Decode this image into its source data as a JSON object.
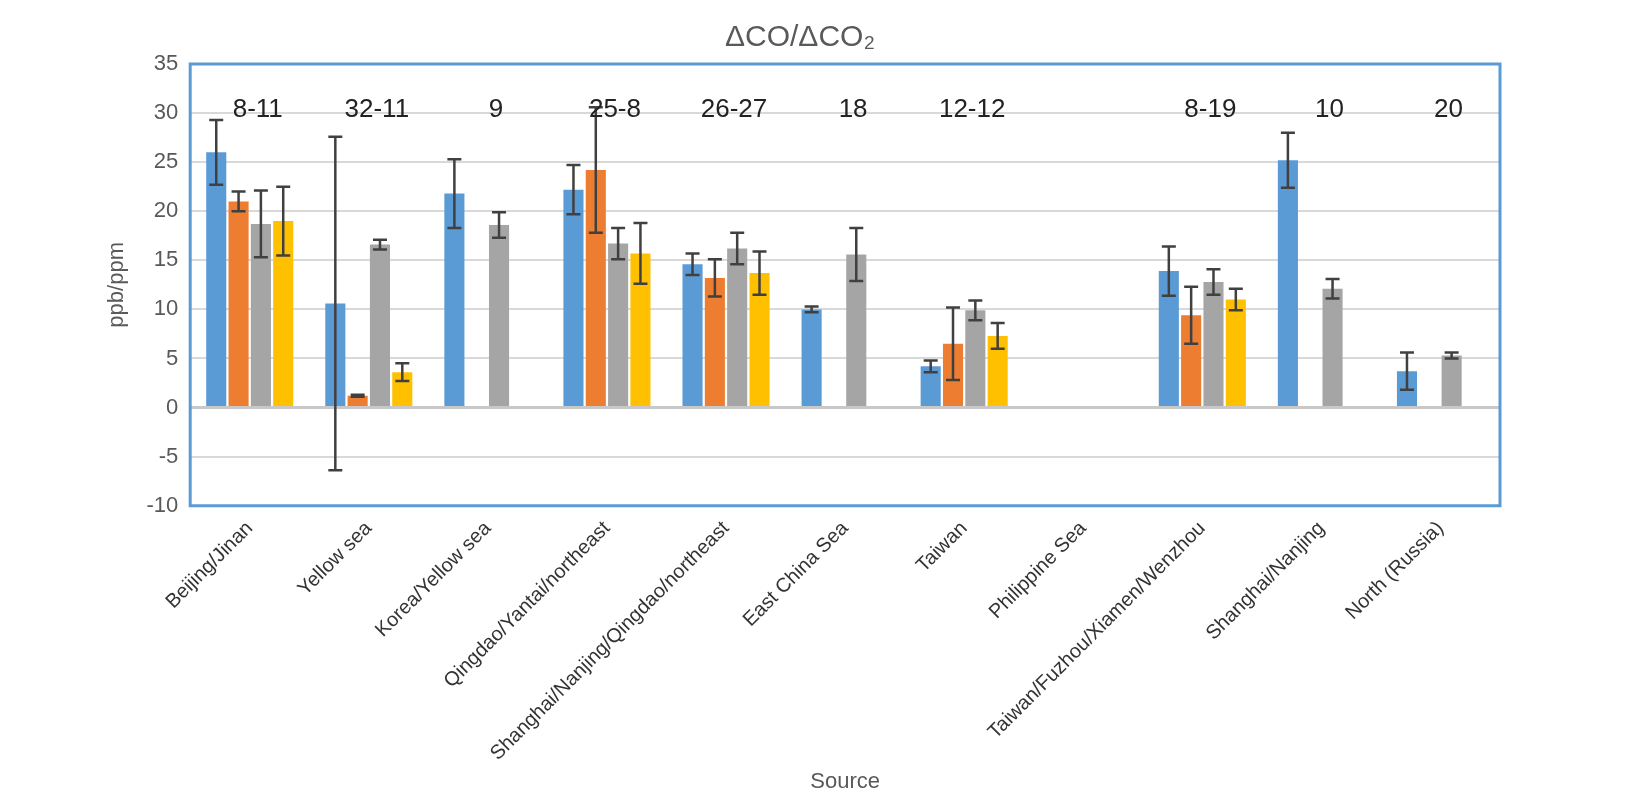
{
  "chart_data": {
    "type": "bar",
    "title": "ΔCO/ΔCO₂",
    "xlabel": "Source",
    "ylabel": "ppb/ppm",
    "categories": [
      "Beijing/Jinan",
      "Yellow sea",
      "Korea/Yellow sea",
      "Qingdao/Yantai/northeast",
      "Shanghai/Nanjing/Qingdao/northeast",
      "East China Sea",
      "Taiwan",
      "Philippine Sea",
      "Taiwan/Fuzhou/Xiamen/Wenzhou",
      "Shanghai/Nanjing",
      "North (Russia)"
    ],
    "series": [
      {
        "color": "#5b9bd5",
        "values": [
          26,
          10.6,
          21.8,
          22.2,
          14.6,
          10,
          4.2,
          null,
          13.9,
          25.2,
          3.7
        ],
        "errors": [
          3.3,
          17,
          3.5,
          2.5,
          1.1,
          0.3,
          0.6,
          null,
          2.5,
          2.8,
          1.9
        ]
      },
      {
        "color": "#ed7d31",
        "values": [
          21,
          1.2,
          null,
          24.2,
          13.2,
          null,
          6.5,
          null,
          9.4,
          null,
          null
        ],
        "errors": [
          1,
          0.1,
          null,
          6.4,
          1.9,
          null,
          3.7,
          null,
          2.9,
          null,
          null
        ]
      },
      {
        "color": "#a5a5a5",
        "values": [
          18.7,
          16.6,
          18.6,
          16.7,
          16.2,
          15.6,
          9.9,
          null,
          12.8,
          12.1,
          5.3
        ],
        "errors": [
          3.4,
          0.5,
          1.3,
          1.6,
          1.6,
          2.7,
          1,
          null,
          1.3,
          1,
          0.3
        ]
      },
      {
        "color": "#ffc000",
        "values": [
          19,
          3.6,
          null,
          15.7,
          13.7,
          null,
          7.3,
          null,
          11,
          null,
          null
        ],
        "errors": [
          3.5,
          0.9,
          null,
          3.1,
          2.2,
          null,
          1.3,
          null,
          1.1,
          null,
          null
        ]
      }
    ],
    "ylim": [
      -10,
      35
    ],
    "yticks": [
      -10,
      -5,
      0,
      5,
      10,
      15,
      20,
      25,
      30,
      35
    ],
    "grid": "y",
    "legend": false,
    "annotations": [
      "8-11",
      "32-11",
      "9",
      "25-8",
      "26-27",
      "18",
      "12-12",
      "8-19",
      "10",
      "20"
    ]
  }
}
